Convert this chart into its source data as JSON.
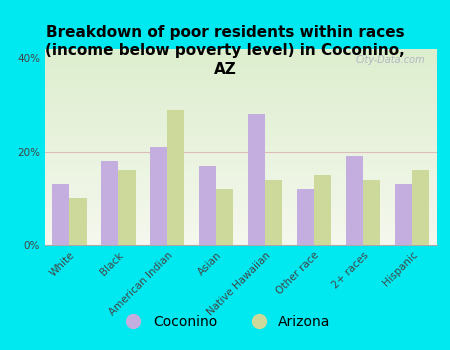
{
  "title": "Breakdown of poor residents within races\n(income below poverty level) in Coconino,\nAZ",
  "categories": [
    "White",
    "Black",
    "American Indian",
    "Asian",
    "Native Hawaiian",
    "Other race",
    "2+ races",
    "Hispanic"
  ],
  "coconino": [
    13,
    18,
    21,
    17,
    28,
    12,
    19,
    13
  ],
  "arizona": [
    10,
    16,
    29,
    12,
    14,
    15,
    14,
    16
  ],
  "coconino_color": "#c4aee0",
  "arizona_color": "#cdd99a",
  "bg_outer": "#00e8f0",
  "plot_bg_color": "#eef5e4",
  "ylim": [
    0,
    42
  ],
  "yticks": [
    0,
    20,
    40
  ],
  "ytick_labels": [
    "0%",
    "20%",
    "40%"
  ],
  "bar_width": 0.35,
  "title_fontsize": 11,
  "tick_fontsize": 7.5,
  "legend_fontsize": 10,
  "watermark": "City-Data.com"
}
